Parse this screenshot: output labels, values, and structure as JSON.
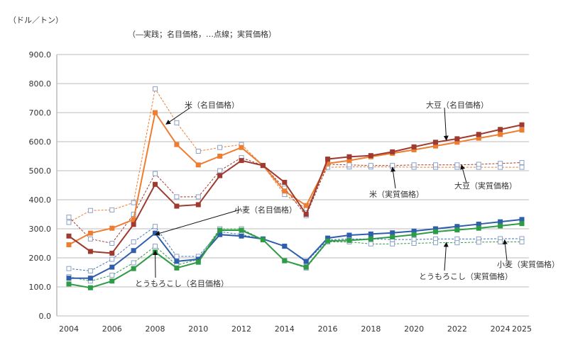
{
  "chart_data": {
    "type": "line",
    "unit_label": "（ドル／トン）",
    "legend_note": "（―実践；名目価格，…点線；実質価格）",
    "x": [
      2004,
      2005,
      2006,
      2007,
      2008,
      2009,
      2010,
      2011,
      2012,
      2013,
      2014,
      2015,
      2016,
      2017,
      2018,
      2019,
      2020,
      2021,
      2022,
      2023,
      2024,
      2025
    ],
    "x_tick_labels": [
      "2004",
      "2006",
      "2008",
      "2010",
      "2012",
      "2014",
      "2016",
      "2018",
      "2020",
      "2022",
      "2024",
      "2025"
    ],
    "y_tick_labels": [
      "0.0",
      "100.0",
      "200.0",
      "300.0",
      "400.0",
      "500.0",
      "600.0",
      "700.0",
      "800.0",
      "900.0"
    ],
    "ylim": [
      0,
      900
    ],
    "grid": "horizontal",
    "series": [
      {
        "name": "米（実質価格）",
        "color": "#ed7d31",
        "dashed": true,
        "open": true,
        "values": [
          322,
          363,
          365,
          390,
          782,
          665,
          567,
          580,
          590,
          518,
          418,
          370,
          512,
          513,
          513,
          513,
          512,
          512,
          512,
          512,
          512,
          512
        ]
      },
      {
        "name": "大豆（実質価格）",
        "color": "#9e3a2f",
        "dashed": true,
        "open": true,
        "values": [
          340,
          265,
          250,
          350,
          490,
          410,
          410,
          500,
          545,
          518,
          440,
          345,
          522,
          520,
          518,
          518,
          520,
          520,
          520,
          522,
          525,
          528
        ]
      },
      {
        "name": "小麦（実質価格）",
        "color": "#4472c4",
        "dashed": true,
        "open": true,
        "values": [
          163,
          155,
          195,
          255,
          308,
          205,
          205,
          290,
          280,
          265,
          240,
          185,
          262,
          265,
          265,
          263,
          263,
          265,
          265,
          265,
          266,
          266
        ]
      },
      {
        "name": "とうもろこし（実質価格）",
        "color": "#2e9b46",
        "dashed": true,
        "open": true,
        "values": [
          135,
          120,
          140,
          183,
          240,
          175,
          195,
          300,
          300,
          262,
          190,
          165,
          255,
          255,
          248,
          248,
          250,
          252,
          252,
          254,
          255,
          255
        ]
      },
      {
        "name": "米（名目価格）",
        "color": "#ed7d31",
        "dashed": false,
        "open": false,
        "values": [
          245,
          285,
          302,
          332,
          700,
          590,
          520,
          550,
          580,
          518,
          430,
          380,
          525,
          535,
          548,
          560,
          572,
          585,
          598,
          612,
          625,
          640
        ]
      },
      {
        "name": "大豆（名目価格）",
        "color": "#9e3a2f",
        "dashed": false,
        "open": false,
        "values": [
          275,
          222,
          216,
          315,
          453,
          378,
          383,
          483,
          535,
          518,
          460,
          350,
          540,
          548,
          552,
          565,
          582,
          598,
          610,
          625,
          642,
          658
        ]
      },
      {
        "name": "小麦（名目価格）",
        "color": "#2f5eab",
        "dashed": false,
        "open": false,
        "values": [
          130,
          130,
          168,
          225,
          285,
          188,
          195,
          280,
          275,
          265,
          240,
          188,
          268,
          278,
          282,
          286,
          292,
          300,
          308,
          316,
          324,
          332
        ]
      },
      {
        "name": "とうもろこし（名目価格）",
        "color": "#2e9b46",
        "dashed": false,
        "open": false,
        "values": [
          110,
          97,
          120,
          163,
          220,
          165,
          185,
          295,
          295,
          262,
          190,
          168,
          258,
          260,
          265,
          272,
          280,
          290,
          296,
          302,
          310,
          318
        ]
      }
    ],
    "annotations": [
      {
        "text": "米（名目価格）",
        "target_year": 2008.5,
        "target_value": 660
      },
      {
        "text": "大豆（名目価格）",
        "target_year": 2021.5,
        "target_value": 605
      },
      {
        "text": "米（実質価格）",
        "target_year": 2019,
        "target_value": 512
      },
      {
        "text": "大豆（実質価格）",
        "target_year": 2022.2,
        "target_value": 520
      },
      {
        "text": "小麦（名目価格）",
        "target_year": 2008,
        "target_value": 280
      },
      {
        "text": "とうもろこし（名目価格）",
        "target_year": 2008,
        "target_value": 225
      },
      {
        "text": "とうもろこし（実質価格）",
        "target_year": 2021.5,
        "target_value": 253
      },
      {
        "text": "小麦（実質価格）",
        "target_year": 2024.2,
        "target_value": 262
      }
    ]
  }
}
